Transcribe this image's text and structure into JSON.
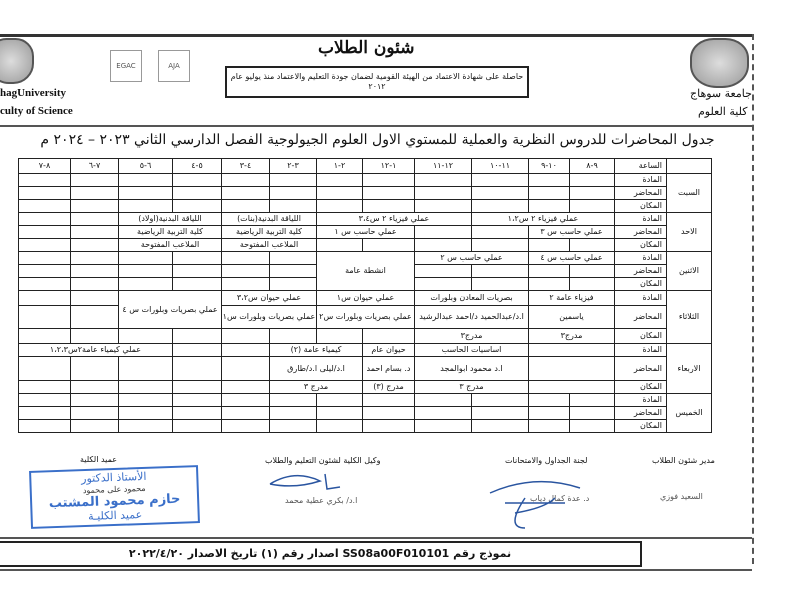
{
  "header": {
    "university_ar": "جامعة سوهاج",
    "faculty_ar": "كلية العلوم",
    "university_en": "hagUniversity",
    "faculty_en": "culty of Science",
    "department": "شئون الطلاب",
    "accreditation": "حاصلة على شهادة الاعتماد من الهيئة القومية لضمان جودة التعليم والاعتماد منذ يوليو عام ٢٠١٢",
    "logo_egac": "EGAC",
    "logo_aja": "AJA"
  },
  "title": "جدول المحاضرات للدروس النظرية والعملية للمستوي الاول العلوم الجيولوجية الفصل الدارسي الثاني ٢٠٢٣ – ٢٠٢٤ م",
  "table": {
    "hour_label": "الساعة",
    "times": [
      "٩-٨",
      "١٠-٩",
      "١١-١٠",
      "١٢-١١",
      "١-١٢",
      "٢-١",
      "٣-٢",
      "٤-٣",
      "٥-٤",
      "٦-٥",
      "٧-٦",
      "٨-٧"
    ],
    "row_labels": {
      "subject": "المادة",
      "lecturer": "المحاضر",
      "place": "المكان"
    },
    "days": [
      "السبت",
      "الاحد",
      "الاثنين",
      "الثلاثاء",
      "الاربعاء",
      "الخميس"
    ],
    "sun": {
      "phys12": "عملي فيزياء ٢ س١،٢",
      "phys34": "عملي فيزياء ٢ س٣،٤",
      "pe_girls": "اللياقة البدنية(بنات)",
      "pe_boys": "اللياقة البدنية(اولاد)",
      "comp3": "عملي حاسب س ٣",
      "comp1": "عملي حاسب س ١",
      "pe_fac": "كلية التربية الرياضية",
      "fields": "الملاعب المفتوحة"
    },
    "mon": {
      "comp4": "عملي حاسب س ٤",
      "comp2": "عملي حاسب س ٢",
      "activities": "انشطة عامة"
    },
    "tue": {
      "phys": "فيزياء عامة ٢",
      "optics": "بصريات المعادن وبلورات",
      "zoo1": "عملي حيوان س١",
      "zoo23": "عملي حيوان س٣،٢",
      "optics4": "عملي بصريات وبلورات س ٤",
      "lect1": "ياسمين",
      "lect2": "ا.د/عبدالحميد  د/احمد عبدالرشيد",
      "optics2": "عملي بصريات وبلورات س٢",
      "optics1": "عملي بصريات وبلورات س١",
      "hall1": "مدرج٣",
      "hall2": "مدرج٣"
    },
    "wed": {
      "cs": "اساسيات الحاسب",
      "zoo": "حيوان عام",
      "chem": "كيمياء عامة (٢)",
      "chemlab": "عملي كيمياء عامة٢س١،٢،٣",
      "lect_cs": "ا.د محمود ابوالمجد",
      "lect_zoo": "د. بسام احمد",
      "lect_chem": "ا.د/ليلى  ا.د/طارق",
      "hall_cs": "مدرج ٣",
      "hall_zoo": "مدرج (٣)",
      "hall_chem": "مدرج ٣"
    }
  },
  "signatures": {
    "s1_title": "مدير شئون الطلاب",
    "s1_name": "السعيد فوزي",
    "s2_title": "لجنة الجداول والامتحانات",
    "s2_name": "د. عدة كمال دياب",
    "s3_title": "وكيل الكلية لشئون التعليم والطلاب",
    "s3_name": "ا.د/ بكري عطية محمد",
    "s4_title": "عميد الكلية",
    "s4_name": "محمود على محمود"
  },
  "stamp": {
    "line1": "الأستاذ الدكتور",
    "line2": "حازم محمود المشتب",
    "line3": "عميد الكليـة"
  },
  "footer": "نموذج رقم SS08a00F010101 اصدار رقم (١) تاريخ الاصدار ٢٠٢٢/٤/٢٠",
  "colors": {
    "stamp": "#3a6fc9",
    "ink": "#111111"
  }
}
